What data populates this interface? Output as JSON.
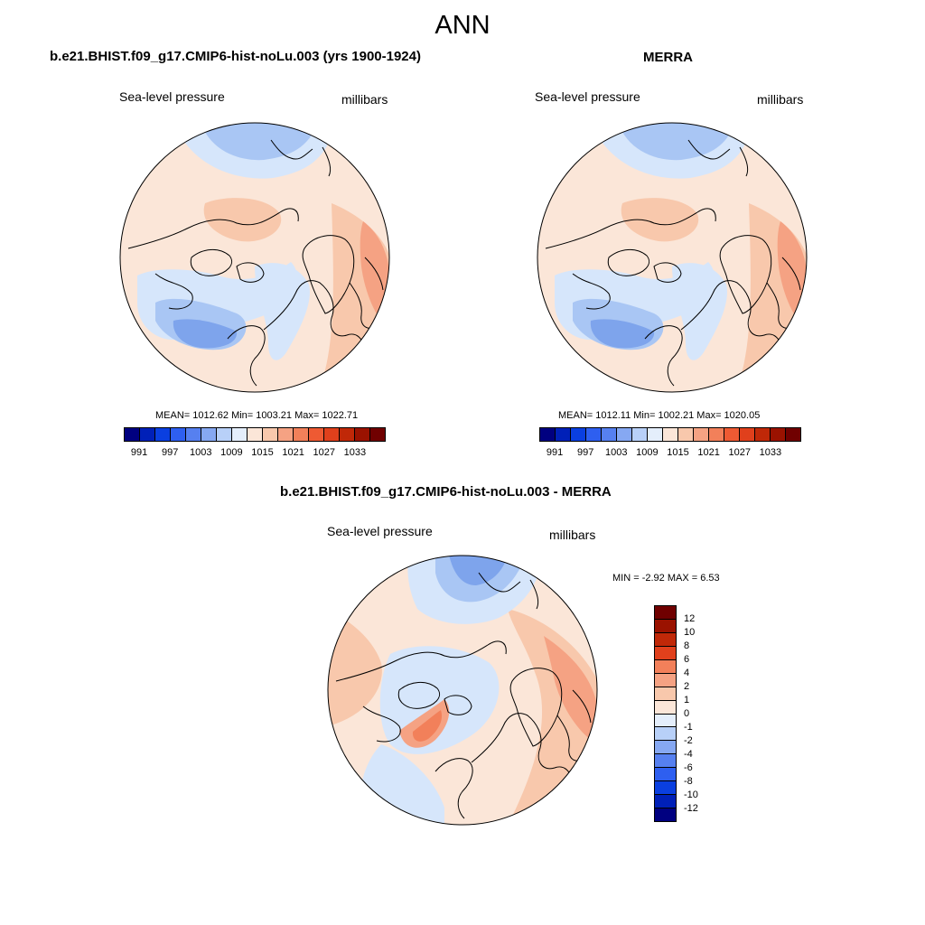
{
  "title": "ANN",
  "colors": {
    "abs_scale": [
      "#000080",
      "#0020b8",
      "#0a3fe0",
      "#2e5ff0",
      "#5680f0",
      "#86a8f2",
      "#b8d0f8",
      "#e4eefb",
      "#fbe6d8",
      "#f8c8ac",
      "#f5a283",
      "#f2805a",
      "#ee5a33",
      "#e0401c",
      "#c02808",
      "#9a1200",
      "#700000"
    ],
    "diff_scale": [
      "#700000",
      "#9a1200",
      "#c02808",
      "#e0401c",
      "#f2805a",
      "#f5a283",
      "#f8c8ac",
      "#fbe6d8",
      "#e4eefb",
      "#b8d0f8",
      "#86a8f2",
      "#5680f0",
      "#2e5ff0",
      "#0a3fe0",
      "#0020b8",
      "#000080"
    ],
    "ocean_base": "#fbe6d8",
    "low_light": "#d6e6fb",
    "low_mid": "#a9c6f4",
    "low_deep": "#7ea4ec",
    "high_light": "#f8c8ac",
    "high_mid": "#f5a283",
    "high_deep": "#f2805a"
  },
  "panels": [
    {
      "title": "b.e21.BHIST.f09_g17.CMIP6-hist-noLu.003 (yrs 1900-1924)",
      "variable": "Sea-level pressure",
      "units": "millibars",
      "stats": "MEAN= 1012.62  Min= 1003.21  Max= 1022.71",
      "colorbar_labels": [
        "991",
        "997",
        "1003",
        "1009",
        "1015",
        "1021",
        "1027",
        "1033"
      ]
    },
    {
      "title": "MERRA",
      "variable": "Sea-level pressure",
      "units": "millibars",
      "stats": "MEAN= 1012.11  Min= 1002.21  Max= 1020.05",
      "colorbar_labels": [
        "991",
        "997",
        "1003",
        "1009",
        "1015",
        "1021",
        "1027",
        "1033"
      ]
    },
    {
      "title": "b.e21.BHIST.f09_g17.CMIP6-hist-noLu.003 - MERRA",
      "variable": "Sea-level pressure",
      "units": "millibars",
      "stats": "MIN =  -2.92 MAX =   6.53",
      "colorbar_labels": [
        "12",
        "10",
        "8",
        "6",
        "4",
        "2",
        "1",
        "0",
        "-1",
        "-2",
        "-4",
        "-6",
        "-8",
        "-10",
        "-12"
      ]
    }
  ]
}
